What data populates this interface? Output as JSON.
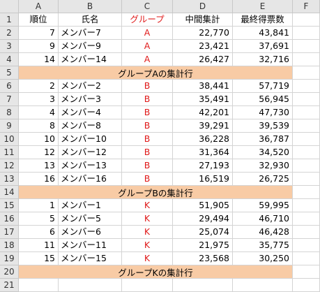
{
  "colors": {
    "group_text": "#e01b1b",
    "summary_fill": "#f8cba5",
    "header_bg": "#e6e6e6"
  },
  "columns": [
    "A",
    "B",
    "C",
    "D",
    "E",
    "F"
  ],
  "header": {
    "rank": "順位",
    "name": "氏名",
    "group": "グループ",
    "mid": "中間集計",
    "final": "最終得票数"
  },
  "rows": [
    {
      "num": "2",
      "rank": "7",
      "name": "メンバー7",
      "group": "A",
      "mid": "22,770",
      "final": "43,841"
    },
    {
      "num": "3",
      "rank": "9",
      "name": "メンバー9",
      "group": "A",
      "mid": "23,421",
      "final": "37,691"
    },
    {
      "num": "4",
      "rank": "14",
      "name": "メンバー14",
      "group": "A",
      "mid": "26,427",
      "final": "32,716"
    },
    {
      "num": "5",
      "summary": "グループAの集計行"
    },
    {
      "num": "6",
      "rank": "2",
      "name": "メンバー2",
      "group": "B",
      "mid": "38,441",
      "final": "57,719"
    },
    {
      "num": "7",
      "rank": "3",
      "name": "メンバー3",
      "group": "B",
      "mid": "35,491",
      "final": "56,945"
    },
    {
      "num": "8",
      "rank": "4",
      "name": "メンバー4",
      "group": "B",
      "mid": "42,201",
      "final": "47,730"
    },
    {
      "num": "9",
      "rank": "8",
      "name": "メンバー8",
      "group": "B",
      "mid": "39,291",
      "final": "39,539"
    },
    {
      "num": "10",
      "rank": "10",
      "name": "メンバー10",
      "group": "B",
      "mid": "36,228",
      "final": "36,787"
    },
    {
      "num": "11",
      "rank": "12",
      "name": "メンバー12",
      "group": "B",
      "mid": "31,364",
      "final": "34,520"
    },
    {
      "num": "12",
      "rank": "13",
      "name": "メンバー13",
      "group": "B",
      "mid": "27,193",
      "final": "32,930"
    },
    {
      "num": "13",
      "rank": "16",
      "name": "メンバー16",
      "group": "B",
      "mid": "16,519",
      "final": "26,725"
    },
    {
      "num": "14",
      "summary": "グループBの集計行"
    },
    {
      "num": "15",
      "rank": "1",
      "name": "メンバー1",
      "group": "K",
      "mid": "51,905",
      "final": "59,995"
    },
    {
      "num": "16",
      "rank": "5",
      "name": "メンバー5",
      "group": "K",
      "mid": "29,494",
      "final": "46,710"
    },
    {
      "num": "17",
      "rank": "6",
      "name": "メンバー6",
      "group": "K",
      "mid": "25,074",
      "final": "46,428"
    },
    {
      "num": "18",
      "rank": "11",
      "name": "メンバー11",
      "group": "K",
      "mid": "21,975",
      "final": "35,775"
    },
    {
      "num": "19",
      "rank": "15",
      "name": "メンバー15",
      "group": "K",
      "mid": "23,568",
      "final": "30,250"
    },
    {
      "num": "20",
      "summary": "グループKの集計行"
    },
    {
      "num": "21"
    }
  ]
}
